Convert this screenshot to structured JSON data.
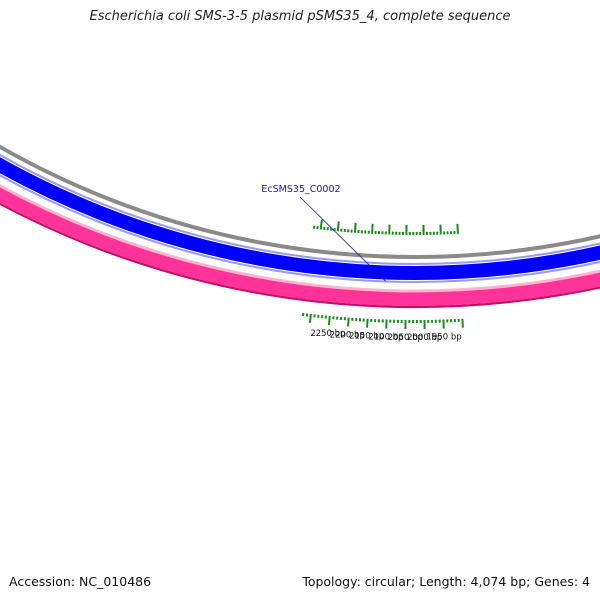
{
  "title": "Escherichia coli SMS-3-5 plasmid pSMS35_4, complete sequence",
  "footer": {
    "accession": "Accession: NC_010486",
    "summary": "Topology: circular; Length: 4,074 bp; Genes: 4"
  },
  "map": {
    "tick_labels": [
      {
        "bp": 2250,
        "text": "2250 bp"
      },
      {
        "bp": 2200,
        "text": "2200 bp"
      },
      {
        "bp": 2150,
        "text": "2150 bp"
      },
      {
        "bp": 2100,
        "text": "2100 bp"
      },
      {
        "bp": 2050,
        "text": "2050 bp"
      },
      {
        "bp": 2000,
        "text": "2000 bp"
      },
      {
        "bp": 1950,
        "text": "1950 bp"
      }
    ],
    "gene_labels": [
      {
        "text": "EcSMS35_C0002"
      }
    ],
    "colors": {
      "forward_track": "#ff3399",
      "forward_track_border": "#c0106a",
      "forward_track_light": "#ffb3cc",
      "reverse_track": "#0000ff",
      "reverse_track_light": "#9999ff",
      "backbone": "#8a8a8a",
      "ticks": "#1a8a1a",
      "gene_label_line": "#1a1aa8"
    }
  }
}
